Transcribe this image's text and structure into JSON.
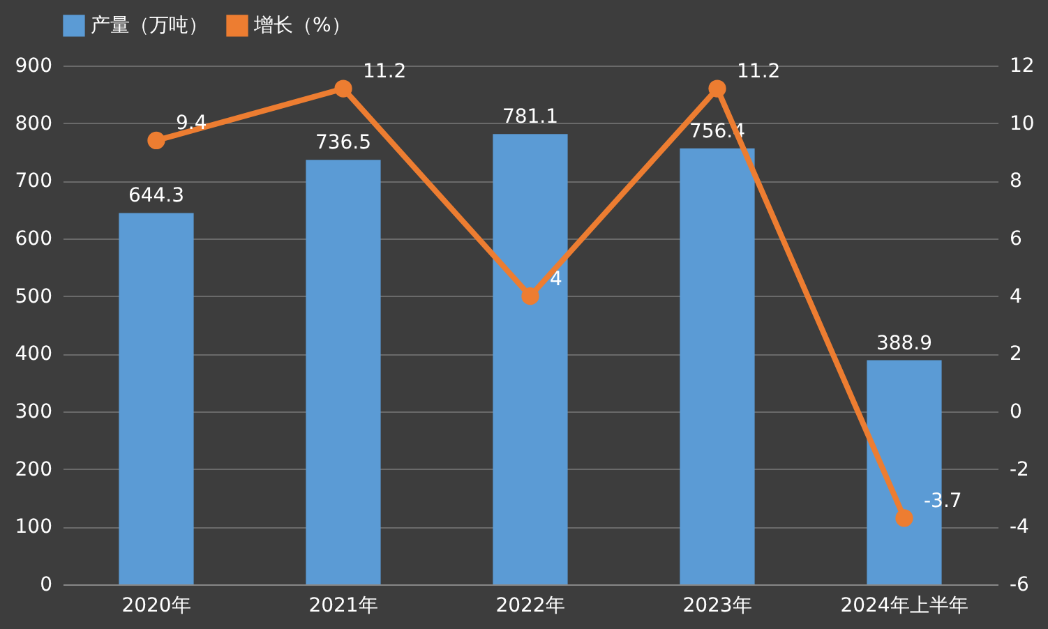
{
  "chart_data": {
    "type": "bar",
    "categories": [
      "2020年",
      "2021年",
      "2022年",
      "2023年",
      "2024年上半年"
    ],
    "series": [
      {
        "name": "产量（万吨）",
        "color": "#5b9bd5",
        "values": [
          644.3,
          736.5,
          781.1,
          756.4,
          388.9
        ]
      },
      {
        "name": "增长（%）",
        "type": "line",
        "axis": "y2",
        "color": "#ed7d31",
        "values": [
          9.4,
          11.2,
          4,
          11.2,
          -3.7
        ]
      }
    ],
    "ylim": [
      0,
      900
    ],
    "yticks": [
      0,
      100,
      200,
      300,
      400,
      500,
      600,
      700,
      800,
      900
    ],
    "y2lim": [
      -6,
      12
    ],
    "y2ticks": [
      -6,
      -4,
      -2,
      0,
      2,
      4,
      6,
      8,
      10,
      12
    ],
    "grid": "y",
    "legend": "top",
    "marker": "circle",
    "line_style": "solid",
    "data_labels": true
  }
}
